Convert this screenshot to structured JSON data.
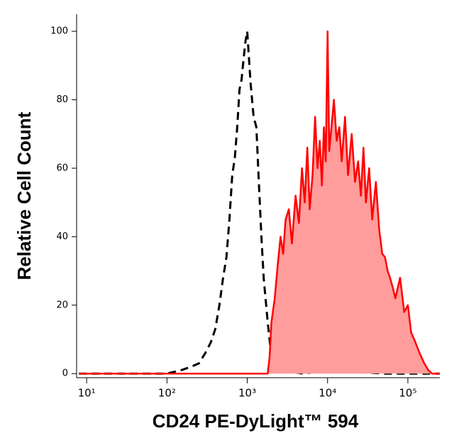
{
  "chart_data": {
    "type": "histogram-overlay",
    "x_label": "CD24 PE-DyLight™ 594",
    "y_label": "Relative Cell Count",
    "xscale": "log",
    "xlim": [
      7.5,
      250000
    ],
    "xticks": [
      {
        "value": 10,
        "label": "10¹"
      },
      {
        "value": 100,
        "label": "10²"
      },
      {
        "value": 1000,
        "label": "10³"
      },
      {
        "value": 10000,
        "label": "10⁴"
      },
      {
        "value": 100000,
        "label": "10⁵"
      }
    ],
    "ylim": [
      -1.2,
      105
    ],
    "yticks": [
      0,
      20,
      40,
      60,
      80,
      100
    ],
    "series": [
      {
        "color": "#000000",
        "style": "dashed",
        "x": [
          8,
          20,
          50,
          100,
          150,
          200,
          250,
          300,
          350,
          400,
          450,
          500,
          550,
          600,
          650,
          700,
          750,
          800,
          850,
          900,
          950,
          1000,
          1100,
          1200,
          1300,
          1400,
          1500,
          1600,
          1800,
          2000,
          2500,
          5000,
          10000,
          50000,
          250000
        ],
        "values": [
          0,
          0,
          0,
          0,
          1,
          2,
          3,
          6,
          9,
          13,
          20,
          28,
          34,
          45,
          58,
          63,
          72,
          83,
          86,
          92,
          97,
          100,
          85,
          75,
          72,
          55,
          40,
          28,
          15,
          5,
          1,
          0,
          1,
          0,
          0
        ]
      },
      {
        "color": "#ff0000",
        "style": "solid",
        "fill": "#ff9c9c",
        "x": [
          8,
          100,
          1000,
          1800,
          1900,
          2000,
          2200,
          2400,
          2600,
          2800,
          3000,
          3300,
          3600,
          4000,
          4400,
          4800,
          5200,
          5600,
          6000,
          6500,
          7000,
          7500,
          8000,
          8500,
          9000,
          9500,
          10000,
          10500,
          11000,
          12000,
          13000,
          14000,
          15000,
          16500,
          18000,
          20000,
          22000,
          24000,
          26000,
          28000,
          30000,
          33000,
          36000,
          40000,
          44000,
          48000,
          52000,
          56000,
          60000,
          65000,
          70000,
          80000,
          90000,
          100000,
          110000,
          120000,
          140000,
          160000,
          180000,
          200000,
          250000
        ],
        "values": [
          0,
          0,
          0,
          0,
          5,
          15,
          22,
          32,
          40,
          35,
          45,
          48,
          38,
          52,
          44,
          60,
          50,
          66,
          48,
          58,
          75,
          60,
          68,
          55,
          72,
          62,
          100,
          65,
          70,
          80,
          68,
          72,
          62,
          75,
          58,
          70,
          56,
          62,
          52,
          66,
          50,
          60,
          45,
          56,
          42,
          35,
          34,
          30,
          28,
          25,
          22,
          28,
          18,
          20,
          12,
          10,
          6,
          3,
          1,
          0,
          0
        ]
      }
    ]
  }
}
